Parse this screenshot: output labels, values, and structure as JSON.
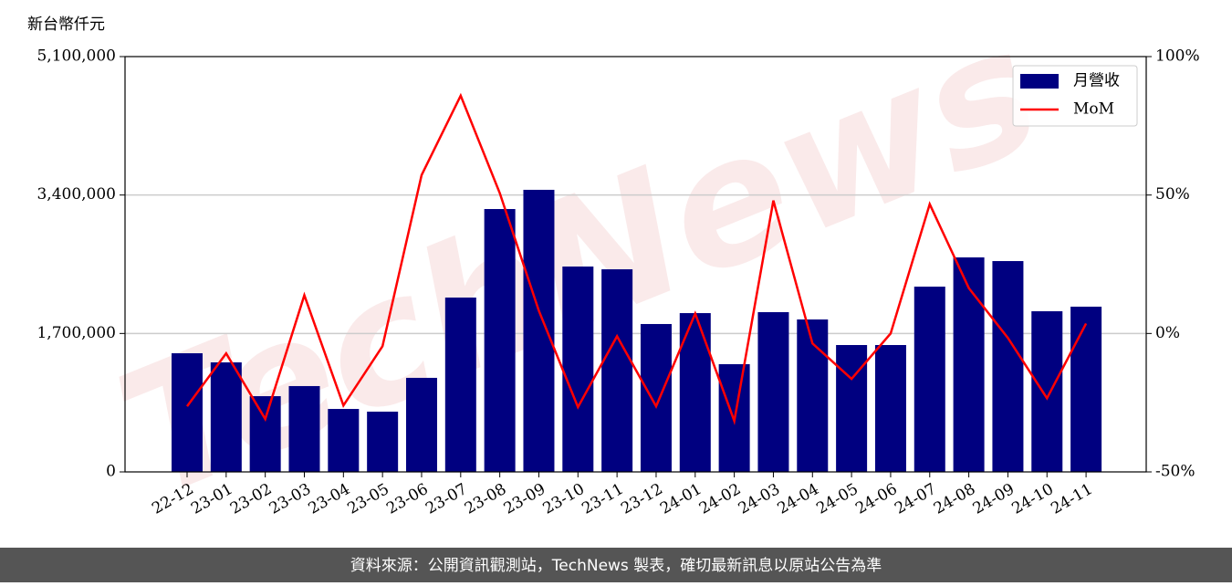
{
  "chart_data": {
    "type": "bar-line",
    "y_axis_label": "新台幣仟元",
    "watermark": "TechNews",
    "footer": "資料來源：公開資訊觀測站，TechNews 製表，確切最新訊息以原站公告為準",
    "categories": [
      "22-12",
      "23-01",
      "23-02",
      "23-03",
      "23-04",
      "23-05",
      "23-06",
      "23-07",
      "23-08",
      "23-09",
      "23-10",
      "23-11",
      "23-12",
      "24-01",
      "24-02",
      "24-03",
      "24-04",
      "24-05",
      "24-06",
      "24-07",
      "24-08",
      "24-09",
      "24-10",
      "24-11"
    ],
    "series": [
      {
        "name": "月營收",
        "type": "bar",
        "color": "#000080",
        "values": [
          1457000,
          1345000,
          930000,
          1054000,
          773000,
          740000,
          1155000,
          2141000,
          3228000,
          3464000,
          2522000,
          2488000,
          1816000,
          1950000,
          1323000,
          1962000,
          1872000,
          1558000,
          1558000,
          2275000,
          2634000,
          2589000,
          1973000,
          2029000
        ]
      },
      {
        "name": "MoM",
        "type": "line",
        "axis": "y2",
        "color": "#ff0000",
        "values": [
          -26.3,
          -7.2,
          -30.9,
          13.8,
          -26,
          -4.6,
          57.2,
          85.9,
          50.7,
          8.2,
          -26.6,
          -1,
          -26.3,
          7.2,
          -31.6,
          48,
          -3.6,
          -16.4,
          0,
          46.7,
          16.4,
          -1.6,
          -23.4,
          3.6
        ]
      }
    ],
    "ylim": [
      0,
      5100000
    ],
    "yticks": [
      0,
      {
        "value": 1700000,
        "label": "1,700,000"
      },
      {
        "value": 3400000,
        "label": "3,400,000"
      },
      {
        "value": 5100000,
        "label": "5,100,000"
      }
    ],
    "y2lim": [
      -50,
      100
    ],
    "y2ticks": [
      {
        "value": -50,
        "label": "-50%"
      },
      {
        "value": 0,
        "label": "0%"
      },
      {
        "value": 50,
        "label": "50%"
      },
      {
        "value": 100,
        "label": "100%"
      }
    ],
    "grid": true,
    "legend": "upper right"
  }
}
